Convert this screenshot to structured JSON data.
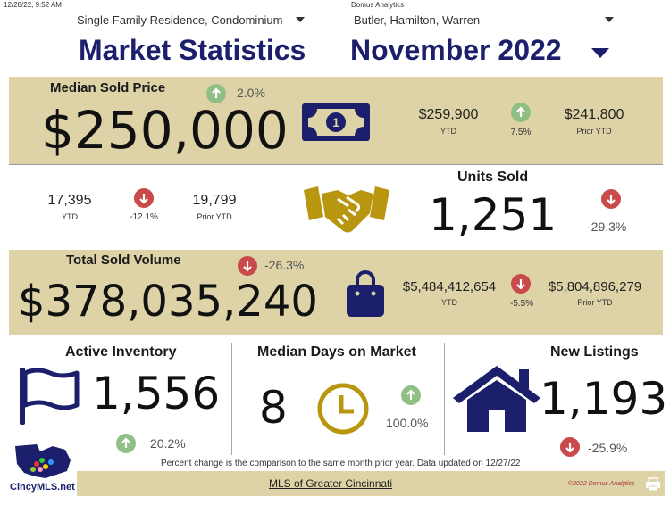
{
  "header": {
    "timestamp": "12/28/22, 9:52 AM",
    "source": "Domus Analytics",
    "property_type": "Single Family Residence, Condominium",
    "region": "Butler, Hamilton, Warren",
    "title": "Market Statistics",
    "month": "November 2022"
  },
  "median_price": {
    "label": "Median Sold Price",
    "value": "$250,000",
    "change": "2.0%",
    "ytd_value": "$259,900",
    "ytd_label": "YTD",
    "ytd_change": "7.5%",
    "prior_value": "$241,800",
    "prior_label": "Prior YTD"
  },
  "units_sold": {
    "label": "Units Sold",
    "value": "1,251",
    "change": "-29.3%",
    "ytd_value": "17,395",
    "ytd_label": "YTD",
    "ytd_change": "-12.1%",
    "prior_value": "19,799",
    "prior_label": "Prior YTD"
  },
  "volume": {
    "label": "Total Sold Volume",
    "value": "$378,035,240",
    "change": "-26.3%",
    "ytd_value": "$5,484,412,654",
    "ytd_label": "YTD",
    "ytd_change": "-5.5%",
    "prior_value": "$5,804,896,279",
    "prior_label": "Prior YTD"
  },
  "active_inventory": {
    "label": "Active Inventory",
    "value": "1,556",
    "change": "20.2%"
  },
  "days_on_market": {
    "label": "Median Days on Market",
    "value": "8",
    "change": "100.0%"
  },
  "new_listings": {
    "label": "New Listings",
    "value": "1,193",
    "change": "-25.9%"
  },
  "footer": {
    "note": "Percent change is the comparison to the same month prior year. Data updated on 12/27/22",
    "link": "MLS of Greater Cincinnati",
    "copyright": "©2022 Domus Analytics",
    "logo_text": "CincyMLS.net"
  },
  "colors": {
    "navy": "#1c1f6b",
    "tan": "#ddd3a6",
    "gold": "#b8960f",
    "up": "#8fbf85",
    "down": "#c94a4a"
  }
}
